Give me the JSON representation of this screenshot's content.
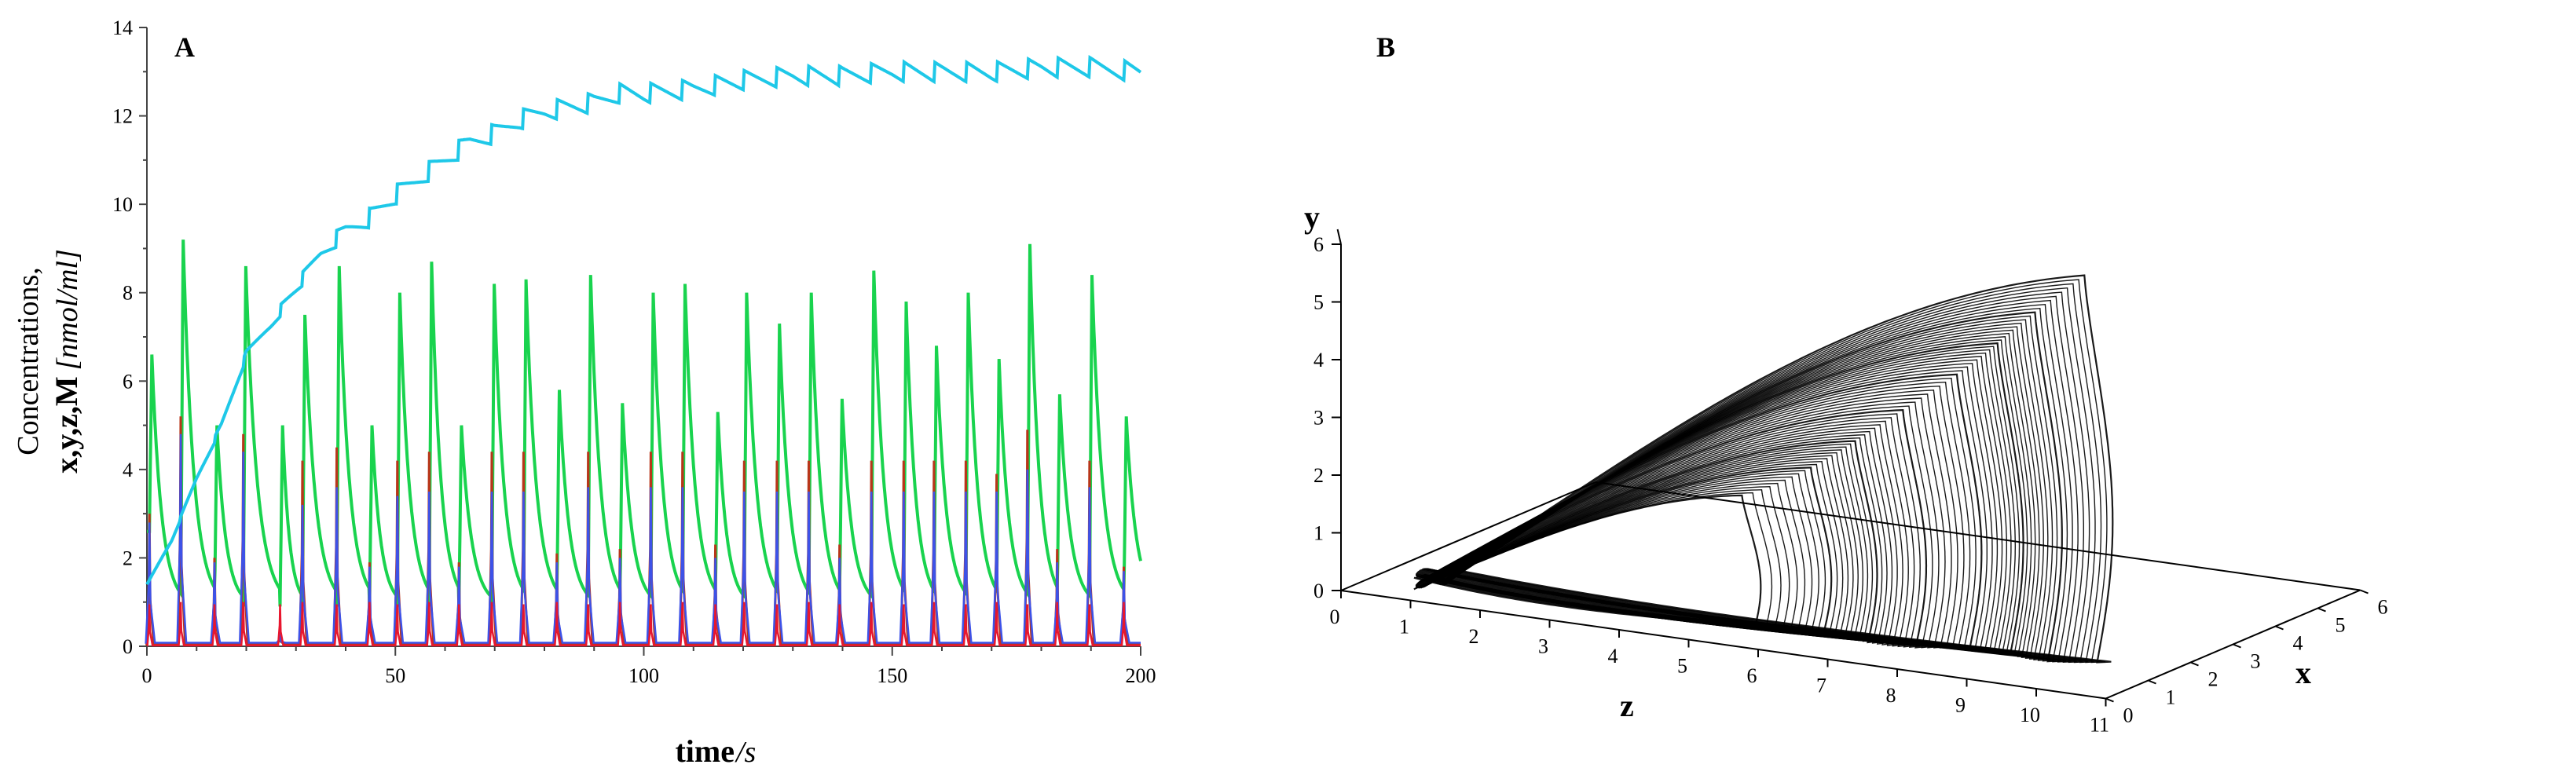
{
  "chart_data": [
    {
      "panel": "A",
      "type": "line",
      "title": "",
      "xlabel_bold": "time",
      "xlabel_unit": "/s",
      "ylabel_line1": "Concentrations,",
      "ylabel_vars": "x,y,z,M",
      "ylabel_unit": "[nmol/ml]",
      "xlim": [
        0,
        200
      ],
      "ylim": [
        0,
        14
      ],
      "x_ticks": [
        0,
        50,
        100,
        150,
        200
      ],
      "y_ticks": [
        0,
        2,
        4,
        6,
        8,
        10,
        12,
        14
      ],
      "x_tick_labels": [
        "0",
        "50",
        "100",
        "150",
        "200"
      ],
      "y_tick_labels": [
        "0",
        "2",
        "4",
        "6",
        "8",
        "10",
        "12",
        "14"
      ],
      "colors": {
        "M": "#1EC8E8",
        "z": "#19D34E",
        "x": "#3D52E8",
        "y": "#B8361A",
        "baseline": "#E8162E"
      },
      "spike_times": [
        0.5,
        6.8,
        13.6,
        19.4,
        26.8,
        31.3,
        38.2,
        44.8,
        50.4,
        56.8,
        62.8,
        69.4,
        75.8,
        82.5,
        88.8,
        95.2,
        101.4,
        107.8,
        114.4,
        120.2,
        126.8,
        133.2,
        139.4,
        145.8,
        152.3,
        158.4,
        164.8,
        171.0,
        177.2,
        183.2,
        189.7,
        196.6
      ],
      "series": [
        {
          "name": "z",
          "color": "#19D34E",
          "peak_values": [
            6.6,
            9.2,
            5.0,
            8.6,
            5.0,
            7.5,
            8.6,
            5.0,
            8.0,
            8.7,
            5.0,
            8.2,
            8.3,
            5.8,
            8.4,
            5.5,
            8.0,
            8.2,
            5.3,
            8.0,
            7.3,
            8.0,
            5.6,
            8.5,
            7.8,
            6.8,
            8.0,
            6.5,
            9.1,
            5.7,
            8.4,
            5.2
          ],
          "trough": 0.9
        },
        {
          "name": "y",
          "color": "#B8361A",
          "peak_values": [
            3.0,
            5.2,
            2.0,
            4.8,
            0.3,
            4.2,
            4.5,
            1.9,
            4.2,
            4.4,
            1.9,
            4.4,
            4.4,
            2.1,
            4.4,
            2.2,
            4.4,
            4.4,
            2.3,
            4.2,
            4.2,
            4.2,
            2.3,
            4.2,
            4.2,
            4.2,
            4.2,
            3.9,
            4.9,
            2.2,
            4.2,
            1.8
          ]
        },
        {
          "name": "x",
          "color": "#3D52E8",
          "peak_values": [
            2.8,
            4.8,
            1.9,
            4.4,
            0.3,
            3.2,
            3.6,
            1.8,
            3.4,
            3.5,
            1.8,
            3.5,
            3.5,
            1.9,
            3.6,
            2.0,
            3.6,
            3.6,
            2.0,
            3.5,
            3.5,
            3.5,
            2.0,
            3.5,
            3.5,
            3.5,
            3.5,
            3.5,
            4.0,
            1.9,
            3.6,
            1.7
          ]
        },
        {
          "name": "M",
          "color": "#1EC8E8",
          "x": [
            0,
            5,
            10,
            15,
            20,
            25,
            30,
            35,
            40,
            45,
            50,
            55,
            60,
            65,
            70,
            75,
            80,
            85,
            90,
            95,
            100,
            110,
            120,
            130,
            140,
            150,
            160,
            170,
            180,
            190,
            200
          ],
          "y": [
            1.4,
            2.4,
            3.8,
            5.0,
            6.6,
            7.3,
            8.1,
            8.9,
            9.4,
            9.7,
            10.2,
            10.6,
            11.0,
            11.4,
            11.6,
            11.9,
            12.1,
            12.2,
            12.3,
            12.5,
            12.5,
            12.6,
            12.8,
            12.9,
            12.9,
            13.0,
            13.0,
            13.0,
            13.1,
            13.1,
            13.0
          ],
          "sawtooth_amplitude": 0.45
        }
      ]
    },
    {
      "panel": "B",
      "type": "line",
      "subtype": "3d-phase-portrait",
      "color": "#000000",
      "x_axis_label": "x",
      "y_axis_label": "y",
      "z_axis_label": "z",
      "x_range": [
        0,
        6
      ],
      "y_range": [
        0,
        6
      ],
      "z_range": [
        0,
        11
      ],
      "x_ticks": [
        "0",
        "1",
        "2",
        "3",
        "4",
        "5",
        "6"
      ],
      "y_ticks": [
        "0",
        "1",
        "2",
        "3",
        "4",
        "5",
        "6"
      ],
      "z_ticks": [
        "0",
        "1",
        "2",
        "3",
        "4",
        "5",
        "6",
        "7",
        "8",
        "9",
        "10",
        "11"
      ],
      "attractor": {
        "z_min": 1.0,
        "z_max": 10.3,
        "y_max": 6.8,
        "x_max": 5.0,
        "loops": 64
      }
    }
  ]
}
